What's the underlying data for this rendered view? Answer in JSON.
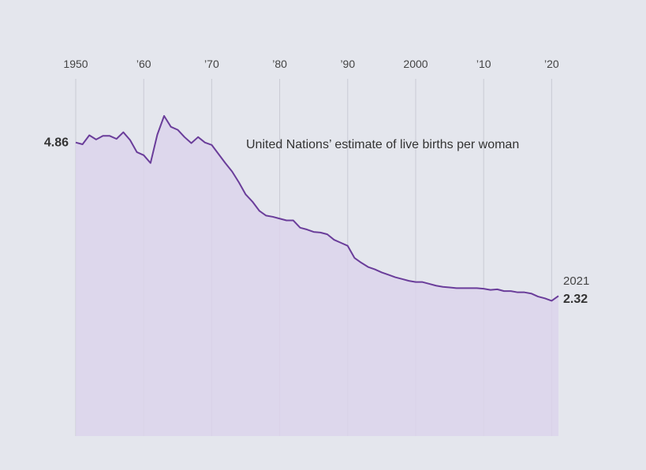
{
  "chart_data": {
    "type": "area",
    "title": "",
    "subtitle": "",
    "xlabel": "",
    "ylabel": "",
    "annotation": "United Nations’ estimate of live births per woman",
    "x_ticks": [
      {
        "year": 1950,
        "label": "1950"
      },
      {
        "year": 1960,
        "label": "’60"
      },
      {
        "year": 1970,
        "label": "’70"
      },
      {
        "year": 1980,
        "label": "’80"
      },
      {
        "year": 1990,
        "label": "’90"
      },
      {
        "year": 2000,
        "label": "2000"
      },
      {
        "year": 2010,
        "label": "’10"
      },
      {
        "year": 2020,
        "label": "’20"
      }
    ],
    "start_label": "4.86",
    "end_year_label": "2021",
    "end_value_label": "2.32",
    "grid": "vertical",
    "colors": {
      "line": "#6a3d9a",
      "fill": "#dcd4eb",
      "grid": "#c9cad4",
      "background": "#e4e6ed"
    },
    "series": [
      {
        "x": [
          1950,
          1951,
          1952,
          1953,
          1954,
          1955,
          1956,
          1957,
          1958,
          1959,
          1960,
          1961,
          1962,
          1963,
          1964,
          1965,
          1966,
          1967,
          1968,
          1969,
          1970,
          1971,
          1972,
          1973,
          1974,
          1975,
          1976,
          1977,
          1978,
          1979,
          1980,
          1981,
          1982,
          1983,
          1984,
          1985,
          1986,
          1987,
          1988,
          1989,
          1990,
          1991,
          1992,
          1993,
          1994,
          1995,
          1996,
          1997,
          1998,
          1999,
          2000,
          2001,
          2002,
          2003,
          2004,
          2005,
          2006,
          2007,
          2008,
          2009,
          2010,
          2011,
          2012,
          2013,
          2014,
          2015,
          2016,
          2017,
          2018,
          2019,
          2020,
          2021
        ],
        "values": [
          4.86,
          4.83,
          4.98,
          4.91,
          4.97,
          4.97,
          4.92,
          5.03,
          4.9,
          4.7,
          4.65,
          4.52,
          4.99,
          5.3,
          5.12,
          5.07,
          4.95,
          4.85,
          4.95,
          4.86,
          4.82,
          4.67,
          4.52,
          4.38,
          4.2,
          4.0,
          3.88,
          3.73,
          3.65,
          3.63,
          3.6,
          3.57,
          3.57,
          3.45,
          3.42,
          3.38,
          3.37,
          3.34,
          3.25,
          3.2,
          3.15,
          2.95,
          2.87,
          2.8,
          2.76,
          2.71,
          2.67,
          2.63,
          2.6,
          2.57,
          2.55,
          2.55,
          2.52,
          2.49,
          2.47,
          2.46,
          2.45,
          2.45,
          2.45,
          2.45,
          2.44,
          2.42,
          2.43,
          2.4,
          2.4,
          2.38,
          2.38,
          2.36,
          2.31,
          2.28,
          2.24,
          2.32
        ]
      }
    ],
    "xlim": [
      1950,
      2021
    ],
    "ylim": [
      0,
      5.3
    ]
  }
}
